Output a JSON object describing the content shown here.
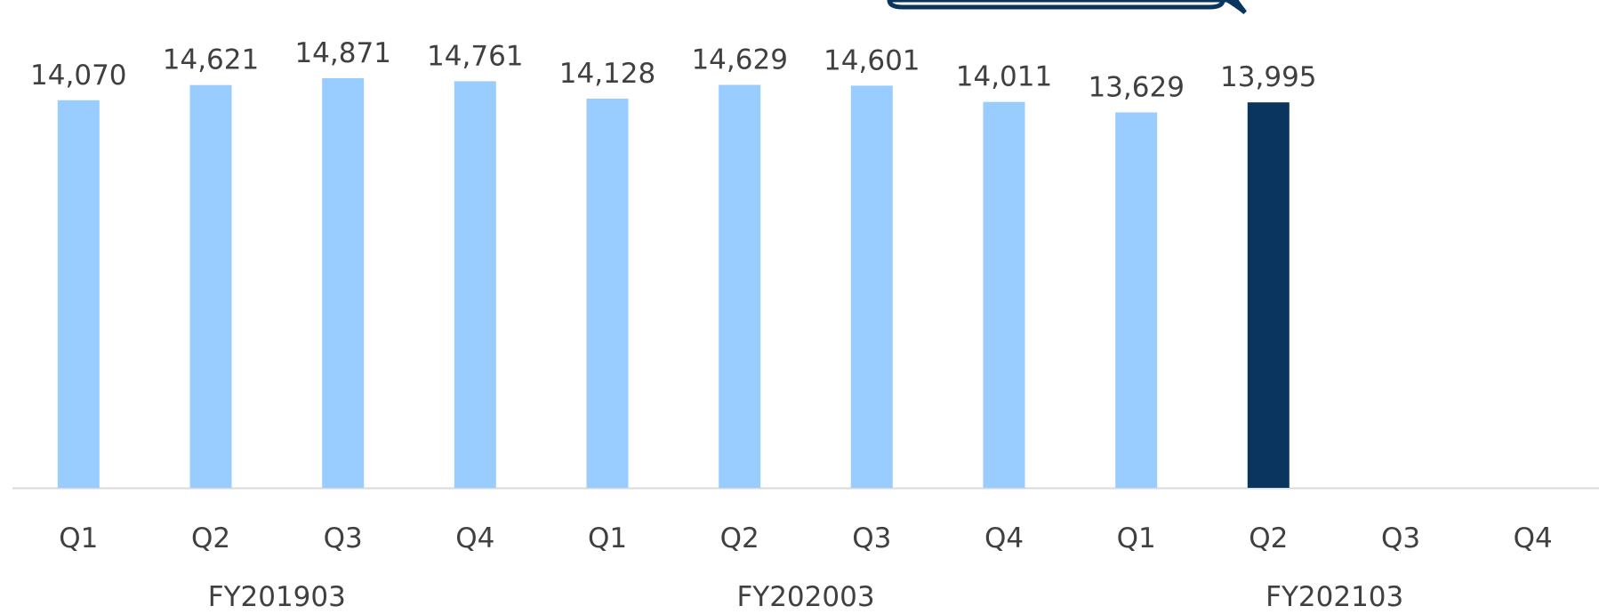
{
  "chart_data": {
    "type": "bar",
    "title": "",
    "xlabel": "",
    "ylabel": "",
    "categories": [
      "Q1",
      "Q2",
      "Q3",
      "Q4",
      "Q1",
      "Q2",
      "Q3",
      "Q4",
      "Q1",
      "Q2",
      "Q3",
      "Q4"
    ],
    "groups": [
      {
        "label": "FY201903",
        "span": 4
      },
      {
        "label": "FY202003",
        "span": 4
      },
      {
        "label": "FY202103",
        "span": 4
      }
    ],
    "series": [
      {
        "values": [
          14070,
          14621,
          14871,
          14761,
          14128,
          14629,
          14601,
          14011,
          13629,
          13995,
          null,
          null
        ],
        "data_labels": [
          "14,070",
          "14,621",
          "14,871",
          "14,761",
          "14,128",
          "14,629",
          "14,601",
          "14,011",
          "13,629",
          "13,995",
          "",
          ""
        ]
      }
    ],
    "highlight_index": 9,
    "colors": {
      "bar": "#99CCFF",
      "highlight": "#0A355E",
      "baseline": "#D9D9D9",
      "callout": "#0A355E",
      "text": "#404040"
    },
    "legend": "none",
    "grid": false,
    "y_axis_visible": false,
    "callout": {
      "visible": true,
      "text": ""
    }
  }
}
